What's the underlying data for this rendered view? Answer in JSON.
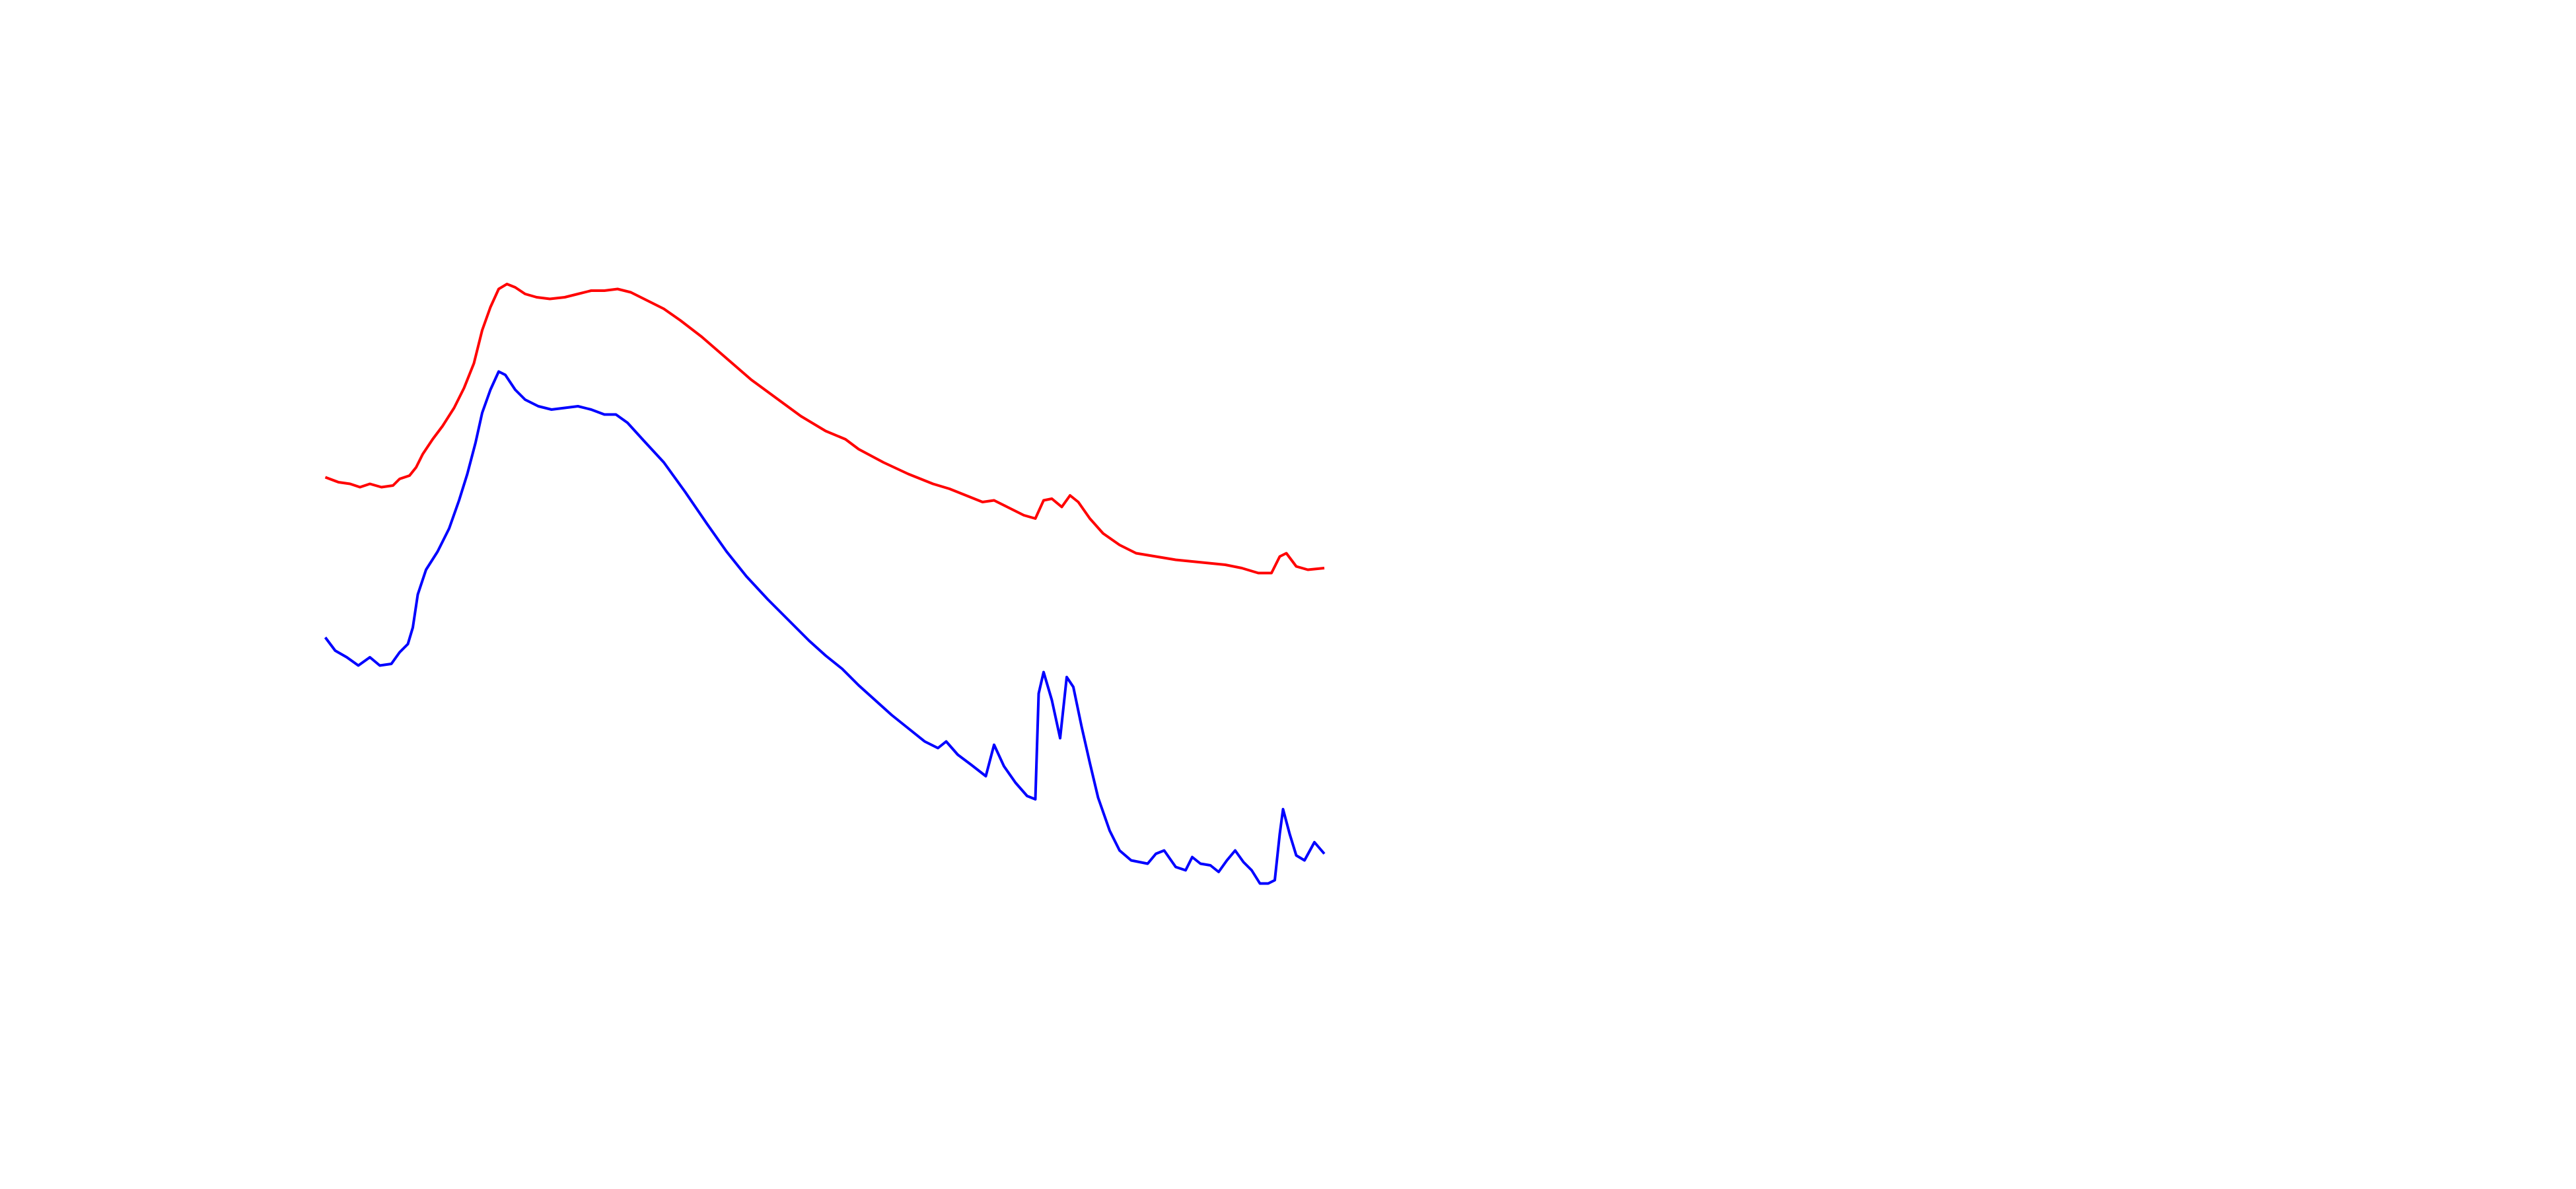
{
  "chart_data": {
    "type": "line",
    "xlim": [
      0,
      1560
    ],
    "ylim": [
      0,
      720
    ],
    "series": [
      {
        "color": "#ff0000",
        "x": [
          197,
          205,
          212,
          218,
          224,
          231,
          238,
          242,
          248,
          252,
          256,
          262,
          268,
          275,
          281,
          287,
          292,
          297,
          302,
          307,
          312,
          318,
          325,
          333,
          342,
          350,
          358,
          366,
          374,
          382,
          392,
          402,
          412,
          425,
          440,
          455,
          470,
          485,
          500,
          512,
          520,
          535,
          550,
          565,
          575,
          585,
          595,
          602,
          610,
          620,
          627,
          632,
          637,
          643,
          648,
          653,
          660,
          668,
          678,
          688,
          700,
          712,
          722,
          732,
          742,
          752,
          762,
          770,
          775,
          779,
          785,
          792,
          802
        ],
        "values": [
          431,
          428,
          427,
          425,
          427,
          425,
          426,
          430,
          432,
          437,
          445,
          454,
          462,
          473,
          485,
          500,
          520,
          534,
          545,
          548,
          546,
          542,
          540,
          539,
          540,
          542,
          544,
          544,
          545,
          543,
          538,
          533,
          526,
          516,
          503,
          490,
          479,
          468,
          459,
          454,
          448,
          440,
          433,
          427,
          424,
          420,
          416,
          417,
          413,
          408,
          406,
          417,
          418,
          413,
          420,
          416,
          406,
          397,
          390,
          385,
          383,
          381,
          380,
          379,
          378,
          376,
          373,
          373,
          383,
          385,
          377,
          375,
          376
        ]
      },
      {
        "color": "#0000ff",
        "x": [
          197,
          203,
          210,
          217,
          224,
          230,
          237,
          242,
          247,
          250,
          253,
          258,
          265,
          272,
          278,
          283,
          288,
          292,
          297,
          302,
          306,
          312,
          318,
          326,
          334,
          342,
          350,
          358,
          366,
          373,
          380,
          390,
          402,
          415,
          428,
          440,
          452,
          465,
          478,
          490,
          500,
          510,
          520,
          530,
          540,
          550,
          560,
          568,
          573,
          580,
          588,
          597,
          602,
          608,
          615,
          622,
          627,
          629,
          632,
          637,
          642,
          646,
          650,
          655,
          660,
          665,
          672,
          678,
          685,
          695,
          700,
          705,
          712,
          718,
          722,
          727,
          733,
          738,
          743,
          748,
          753,
          758,
          763,
          768,
          772,
          775,
          777,
          781,
          785,
          790,
          796,
          802
        ],
        "values": [
          334,
          326,
          322,
          317,
          322,
          317,
          318,
          325,
          330,
          340,
          360,
          375,
          386,
          400,
          417,
          433,
          452,
          470,
          484,
          495,
          493,
          484,
          478,
          474,
          472,
          473,
          474,
          472,
          469,
          469,
          464,
          453,
          440,
          422,
          403,
          386,
          371,
          357,
          344,
          332,
          323,
          315,
          305,
          296,
          287,
          279,
          271,
          267,
          271,
          263,
          257,
          250,
          269,
          256,
          246,
          238,
          236,
          300,
          313,
          296,
          273,
          310,
          304,
          280,
          258,
          237,
          217,
          205,
          199,
          197,
          203,
          205,
          195,
          193,
          201,
          197,
          196,
          192,
          199,
          205,
          198,
          193,
          185,
          185,
          187,
          215,
          230,
          215,
          202,
          199,
          210,
          203
        ]
      }
    ]
  }
}
